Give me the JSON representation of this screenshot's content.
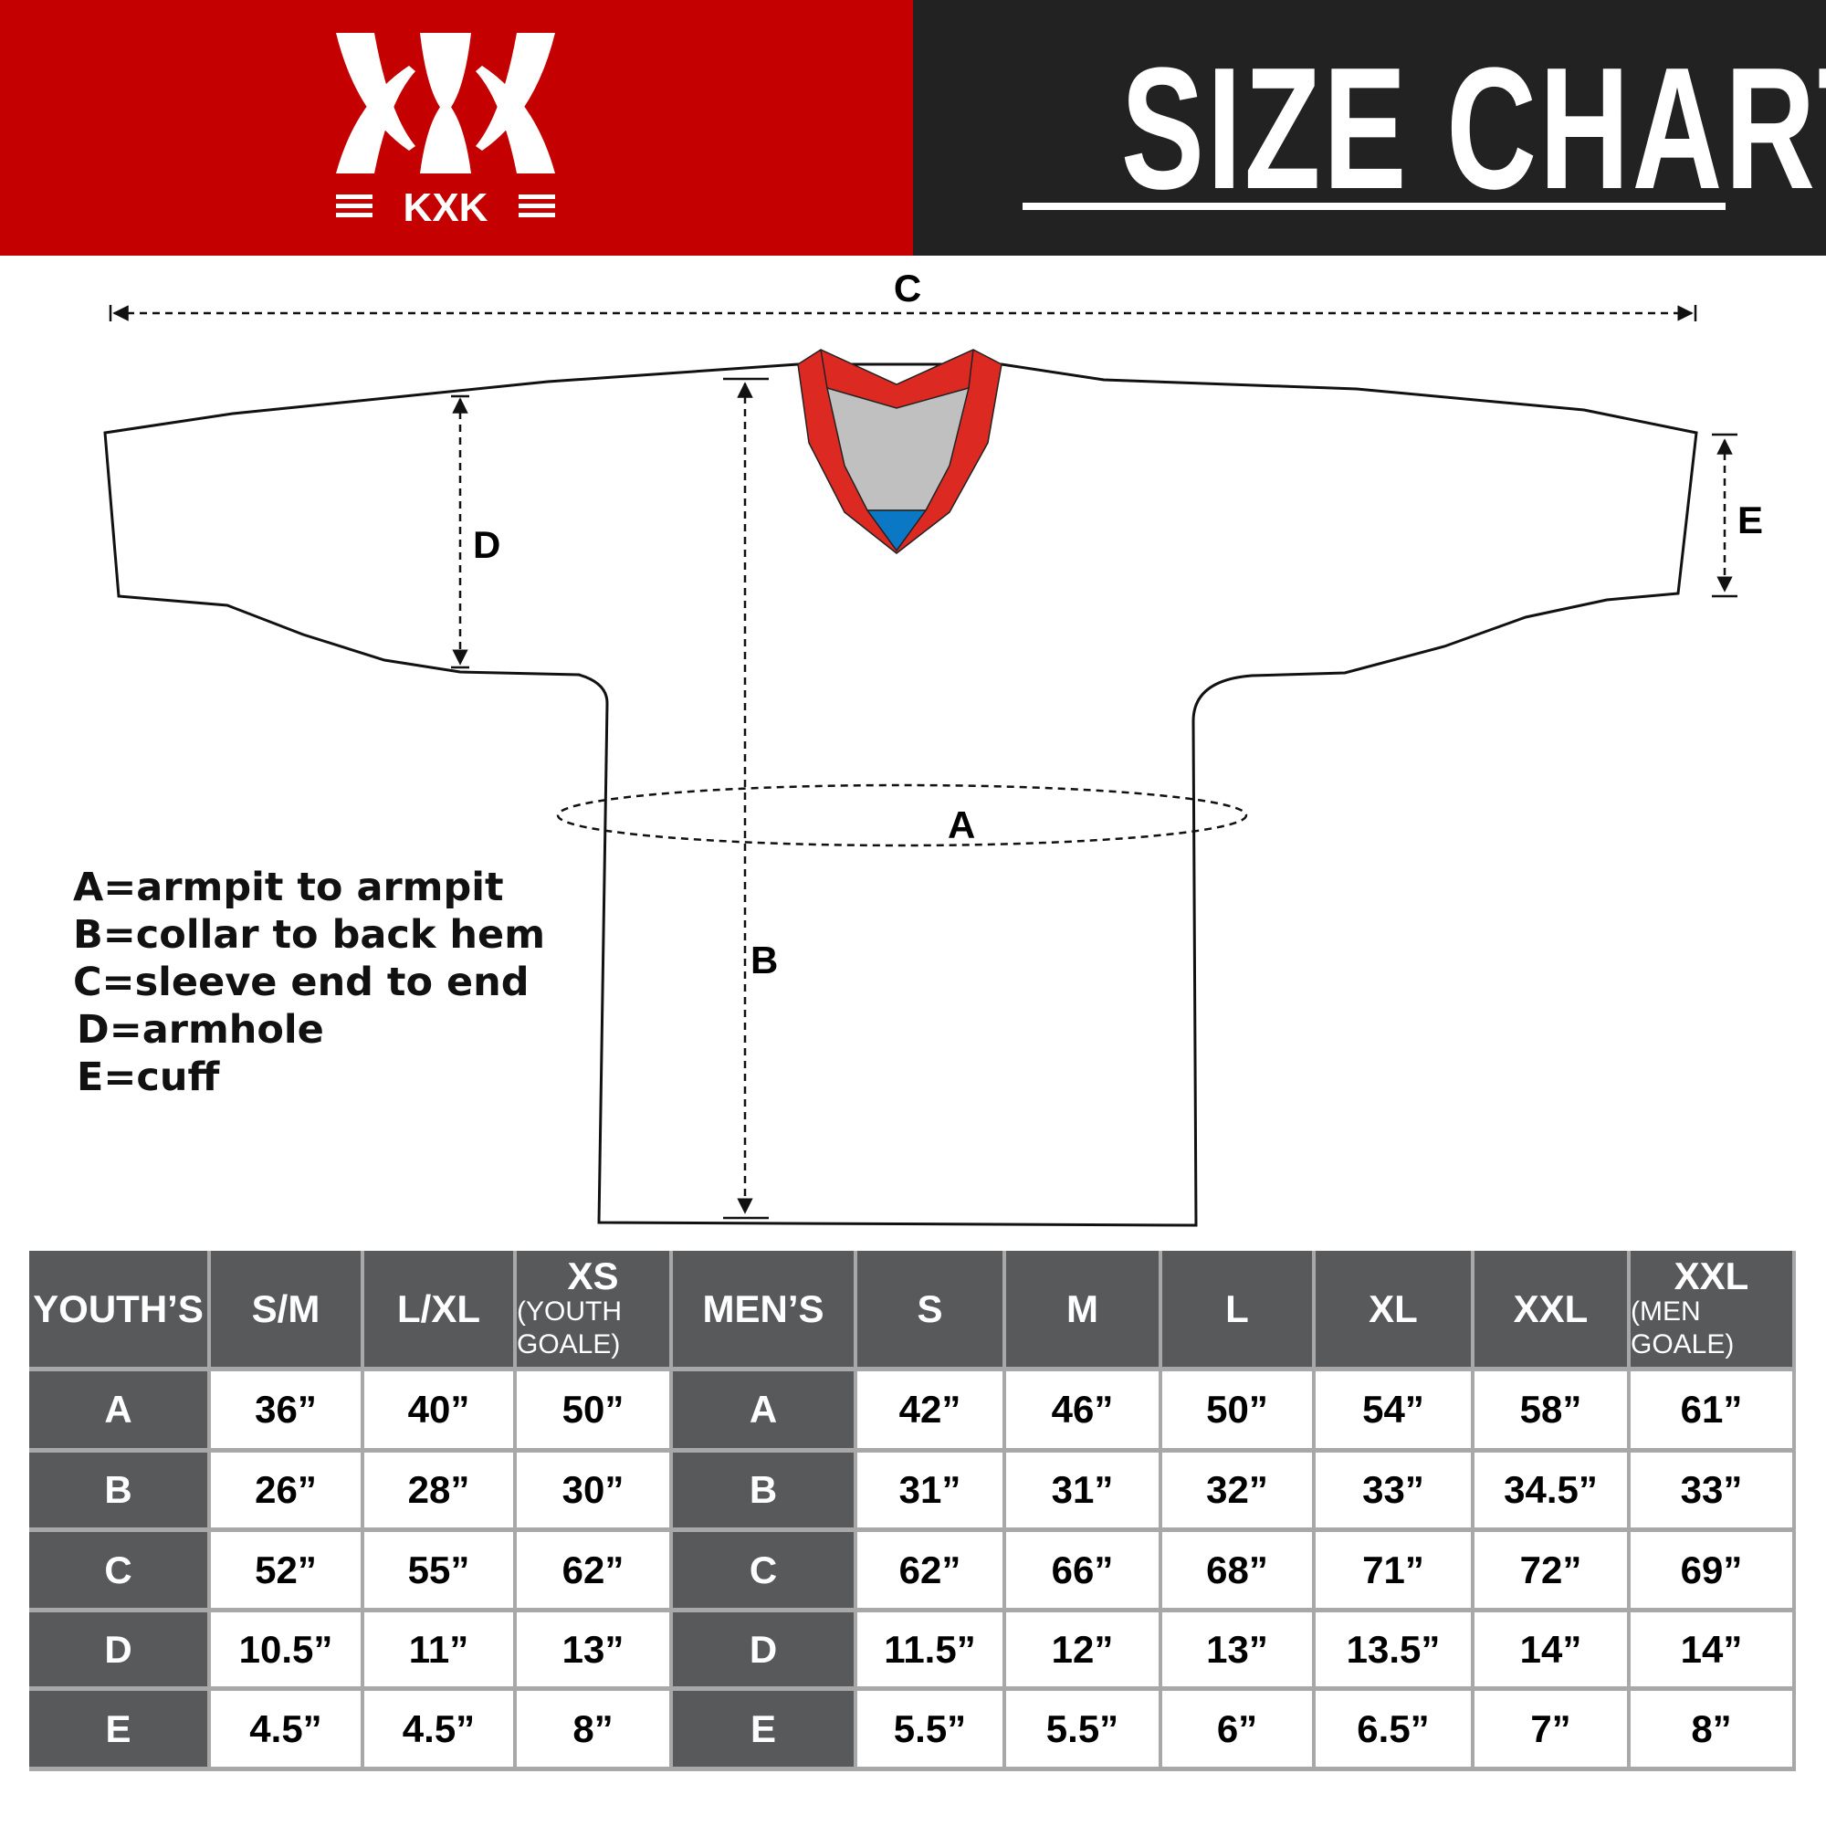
{
  "header": {
    "brand": "KXK",
    "title": "SIZE CHART",
    "colors": {
      "brand_red": "#c40000",
      "dark": "#222222",
      "table_header": "#58595b",
      "collar_red": "#dc2a22",
      "collar_gray": "#c0c0c0",
      "collar_blue": "#0a78c4"
    }
  },
  "diagram": {
    "labels": {
      "a": "A",
      "b": "B",
      "c": "C",
      "d": "D",
      "e": "E"
    }
  },
  "legend": [
    "A=armpit to armpit",
    "B=collar to back hem",
    "C=sleeve end to end",
    "D=armhole",
    "E=cuff"
  ],
  "table": {
    "youth_header": "YOUTH’S",
    "men_header": "MEN’S",
    "youth_sizes": [
      {
        "main": "S/M",
        "sub": ""
      },
      {
        "main": "L/XL",
        "sub": ""
      },
      {
        "main": "XS",
        "sub": "(YOUTH GOALE)"
      }
    ],
    "men_sizes": [
      {
        "main": "S",
        "sub": ""
      },
      {
        "main": "M",
        "sub": ""
      },
      {
        "main": "L",
        "sub": ""
      },
      {
        "main": "XL",
        "sub": ""
      },
      {
        "main": "XXL",
        "sub": ""
      },
      {
        "main": "XXL",
        "sub": "(MEN GOALE)"
      }
    ],
    "rows": [
      {
        "label": "A",
        "youth": [
          "36”",
          "40”",
          "50”"
        ],
        "men": [
          "42”",
          "46”",
          "50”",
          "54”",
          "58”",
          "61”"
        ]
      },
      {
        "label": "B",
        "youth": [
          "26”",
          "28”",
          "30”"
        ],
        "men": [
          "31”",
          "31”",
          "32”",
          "33”",
          "34.5”",
          "33”"
        ]
      },
      {
        "label": "C",
        "youth": [
          "52”",
          "55”",
          "62”"
        ],
        "men": [
          "62”",
          "66”",
          "68”",
          "71”",
          "72”",
          "69”"
        ]
      },
      {
        "label": "D",
        "youth": [
          "10.5”",
          "11”",
          "13”"
        ],
        "men": [
          "11.5”",
          "12”",
          "13”",
          "13.5”",
          "14”",
          "14”"
        ]
      },
      {
        "label": "E",
        "youth": [
          "4.5”",
          "4.5”",
          "8”"
        ],
        "men": [
          "5.5”",
          "5.5”",
          "6”",
          "6.5”",
          "7”",
          "8”"
        ]
      }
    ]
  }
}
